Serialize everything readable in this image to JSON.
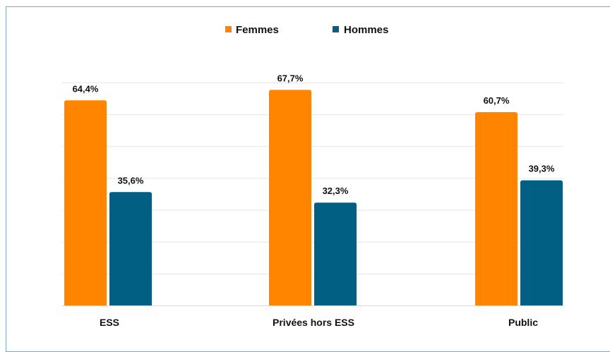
{
  "chart_data": {
    "type": "bar",
    "categories": [
      "ESS",
      "Privées hors ESS",
      "Public"
    ],
    "series": [
      {
        "name": "Femmes",
        "values": [
          64.4,
          67.7,
          60.7
        ],
        "labels": [
          "64,4%",
          "67,7%",
          "60,7%"
        ],
        "color": "#FF8400"
      },
      {
        "name": "Hommes",
        "values": [
          35.6,
          32.3,
          39.3
        ],
        "labels": [
          "35,6%",
          "32,3%",
          "39,3%"
        ],
        "color": "#005F83"
      }
    ],
    "title": "",
    "xlabel": "",
    "ylabel": "",
    "ylim": [
      0,
      70
    ],
    "grid": true,
    "legend": "top-center"
  }
}
